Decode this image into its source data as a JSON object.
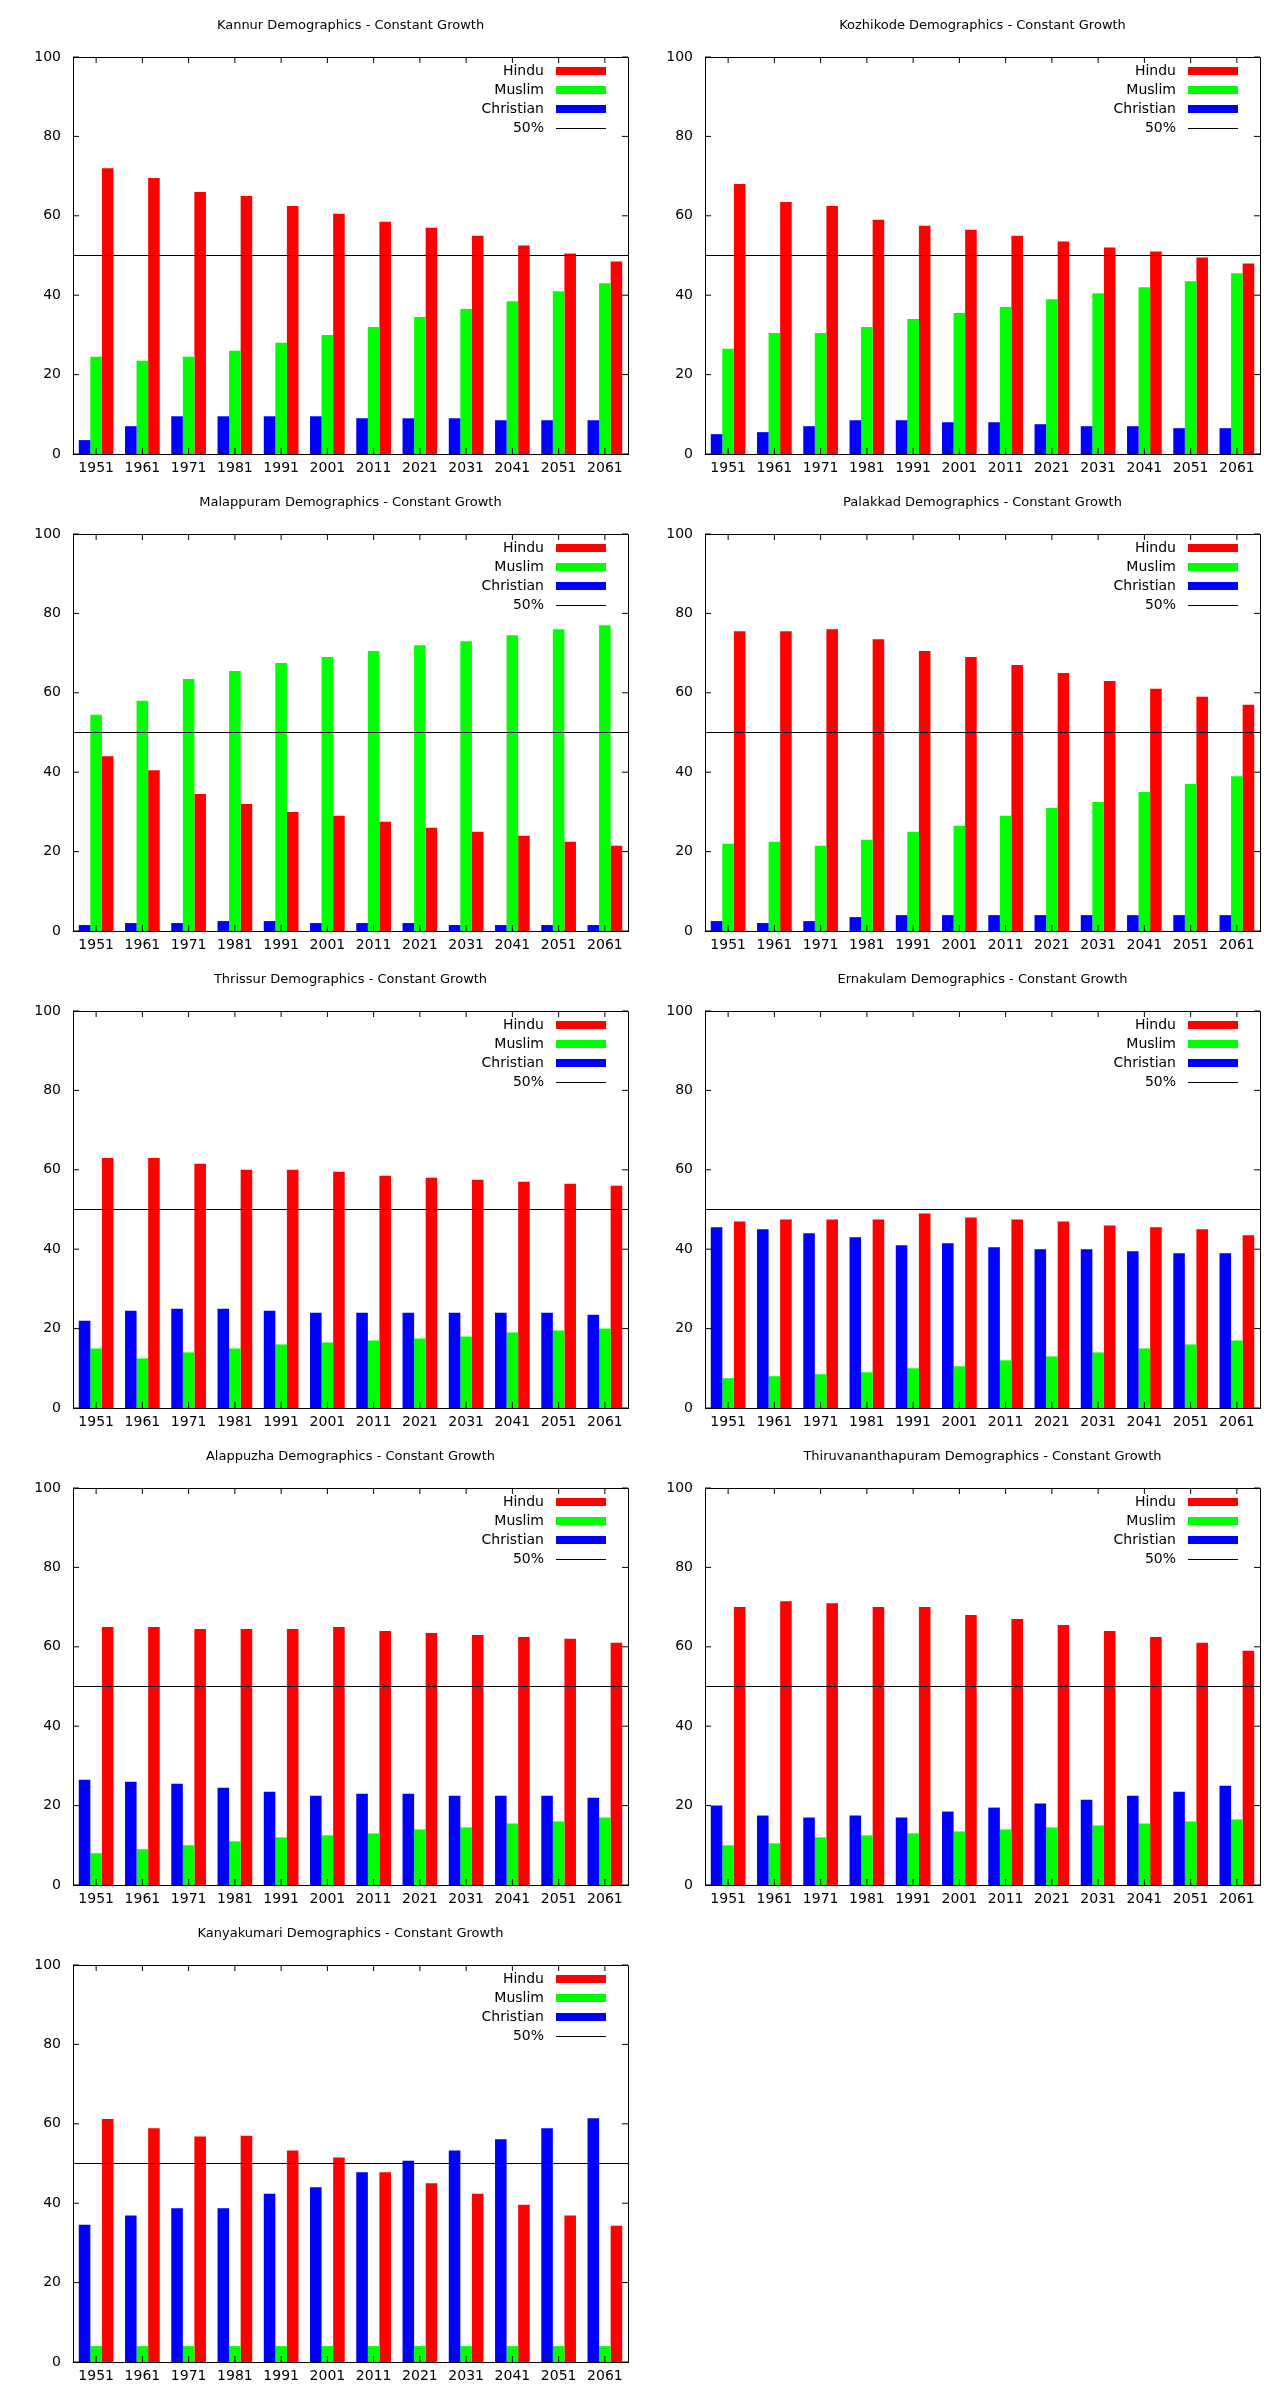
{
  "chart_data": [
    {
      "type": "bar",
      "title": "Kannur Demographics - Constant Growth",
      "categories": [
        "1951",
        "1961",
        "1971",
        "1981",
        "1991",
        "2001",
        "2011",
        "2021",
        "2031",
        "2041",
        "2051",
        "2061"
      ],
      "series": [
        {
          "name": "Hindu",
          "color": "#ff0000",
          "values": [
            72,
            69.5,
            66,
            65,
            62.5,
            60.5,
            58.5,
            57,
            55,
            52.5,
            50.5,
            48.5
          ]
        },
        {
          "name": "Muslim",
          "color": "#00ff00",
          "values": [
            24.5,
            23.5,
            24.5,
            26,
            28,
            30,
            32,
            34.5,
            36.5,
            38.5,
            41,
            43
          ]
        },
        {
          "name": "Christian",
          "color": "#0000ff",
          "values": [
            3.5,
            7,
            9.5,
            9.5,
            9.5,
            9.5,
            9,
            9,
            9,
            8.5,
            8.5,
            8.5
          ]
        }
      ],
      "ylim": [
        0,
        100
      ],
      "yticks": [
        0,
        20,
        40,
        60,
        80,
        100
      ],
      "ref_lines": [
        {
          "axis": "y",
          "value": 50,
          "label": "50%",
          "color": "#000000"
        }
      ],
      "legend": "top right",
      "grid": false
    },
    {
      "type": "bar",
      "title": "Kozhikode Demographics - Constant Growth",
      "categories": [
        "1951",
        "1961",
        "1971",
        "1981",
        "1991",
        "2001",
        "2011",
        "2021",
        "2031",
        "2041",
        "2051",
        "2061"
      ],
      "series": [
        {
          "name": "Hindu",
          "color": "#ff0000",
          "values": [
            68,
            63.5,
            62.5,
            59,
            57.5,
            56.5,
            55,
            53.5,
            52,
            51,
            49.5,
            48
          ]
        },
        {
          "name": "Muslim",
          "color": "#00ff00",
          "values": [
            26.5,
            30.5,
            30.5,
            32,
            34,
            35.5,
            37,
            39,
            40.5,
            42,
            43.5,
            45.5
          ]
        },
        {
          "name": "Christian",
          "color": "#0000ff",
          "values": [
            5,
            5.5,
            7,
            8.5,
            8.5,
            8,
            8,
            7.5,
            7,
            7,
            6.5,
            6.5
          ]
        }
      ],
      "ylim": [
        0,
        100
      ],
      "yticks": [
        0,
        20,
        40,
        60,
        80,
        100
      ],
      "ref_lines": [
        {
          "axis": "y",
          "value": 50,
          "label": "50%",
          "color": "#000000"
        }
      ],
      "legend": "top right",
      "grid": false
    },
    {
      "type": "bar",
      "title": "Malappuram Demographics - Constant Growth",
      "categories": [
        "1951",
        "1961",
        "1971",
        "1981",
        "1991",
        "2001",
        "2011",
        "2021",
        "2031",
        "2041",
        "2051",
        "2061"
      ],
      "series": [
        {
          "name": "Hindu",
          "color": "#ff0000",
          "values": [
            44,
            40.5,
            34.5,
            32,
            30,
            29,
            27.5,
            26,
            25,
            24,
            22.5,
            21.5
          ]
        },
        {
          "name": "Muslim",
          "color": "#00ff00",
          "values": [
            54.5,
            58,
            63.5,
            65.5,
            67.5,
            69,
            70.5,
            72,
            73,
            74.5,
            76,
            77
          ]
        },
        {
          "name": "Christian",
          "color": "#0000ff",
          "values": [
            1.5,
            2,
            2,
            2.5,
            2.5,
            2,
            2,
            2,
            1.5,
            1.5,
            1.5,
            1.5
          ]
        }
      ],
      "ylim": [
        0,
        100
      ],
      "yticks": [
        0,
        20,
        40,
        60,
        80,
        100
      ],
      "ref_lines": [
        {
          "axis": "y",
          "value": 50,
          "label": "50%",
          "color": "#000000"
        }
      ],
      "legend": "top right",
      "grid": false
    },
    {
      "type": "bar",
      "title": "Palakkad Demographics - Constant Growth",
      "categories": [
        "1951",
        "1961",
        "1971",
        "1981",
        "1991",
        "2001",
        "2011",
        "2021",
        "2031",
        "2041",
        "2051",
        "2061"
      ],
      "series": [
        {
          "name": "Hindu",
          "color": "#ff0000",
          "values": [
            75.5,
            75.5,
            76,
            73.5,
            70.5,
            69,
            67,
            65,
            63,
            61,
            59,
            57
          ]
        },
        {
          "name": "Muslim",
          "color": "#00ff00",
          "values": [
            22,
            22.5,
            21.5,
            23,
            25,
            26.5,
            29,
            31,
            32.5,
            35,
            37,
            39
          ]
        },
        {
          "name": "Christian",
          "color": "#0000ff",
          "values": [
            2.5,
            2,
            2.5,
            3.5,
            4,
            4,
            4,
            4,
            4,
            4,
            4,
            4
          ]
        }
      ],
      "ylim": [
        0,
        100
      ],
      "yticks": [
        0,
        20,
        40,
        60,
        80,
        100
      ],
      "ref_lines": [
        {
          "axis": "y",
          "value": 50,
          "label": "50%",
          "color": "#000000"
        }
      ],
      "legend": "top right",
      "grid": false
    },
    {
      "type": "bar",
      "title": "Thrissur Demographics - Constant Growth",
      "categories": [
        "1951",
        "1961",
        "1971",
        "1981",
        "1991",
        "2001",
        "2011",
        "2021",
        "2031",
        "2041",
        "2051",
        "2061"
      ],
      "series": [
        {
          "name": "Hindu",
          "color": "#ff0000",
          "values": [
            63,
            63,
            61.5,
            60,
            60,
            59.5,
            58.5,
            58,
            57.5,
            57,
            56.5,
            56
          ]
        },
        {
          "name": "Muslim",
          "color": "#00ff00",
          "values": [
            15,
            12.5,
            14,
            15,
            16,
            16.5,
            17,
            17.5,
            18,
            19,
            19.5,
            20
          ]
        },
        {
          "name": "Christian",
          "color": "#0000ff",
          "values": [
            22,
            24.5,
            25,
            25,
            24.5,
            24,
            24,
            24,
            24,
            24,
            24,
            23.5
          ]
        }
      ],
      "ylim": [
        0,
        100
      ],
      "yticks": [
        0,
        20,
        40,
        60,
        80,
        100
      ],
      "ref_lines": [
        {
          "axis": "y",
          "value": 50,
          "label": "50%",
          "color": "#000000"
        }
      ],
      "legend": "top right",
      "grid": false
    },
    {
      "type": "bar",
      "title": "Ernakulam Demographics - Constant Growth",
      "categories": [
        "1951",
        "1961",
        "1971",
        "1981",
        "1991",
        "2001",
        "2011",
        "2021",
        "2031",
        "2041",
        "2051",
        "2061"
      ],
      "series": [
        {
          "name": "Hindu",
          "color": "#ff0000",
          "values": [
            47,
            47.5,
            47.5,
            47.5,
            49,
            48,
            47.5,
            47,
            46,
            45.5,
            45,
            43.5
          ]
        },
        {
          "name": "Muslim",
          "color": "#00ff00",
          "values": [
            7.5,
            8,
            8.5,
            9,
            10,
            10.5,
            12,
            13,
            14,
            15,
            16,
            17
          ]
        },
        {
          "name": "Christian",
          "color": "#0000ff",
          "values": [
            45.5,
            45,
            44,
            43,
            41,
            41.5,
            40.5,
            40,
            40,
            39.5,
            39,
            39
          ]
        }
      ],
      "ylim": [
        0,
        100
      ],
      "yticks": [
        0,
        20,
        40,
        60,
        80,
        100
      ],
      "ref_lines": [
        {
          "axis": "y",
          "value": 50,
          "label": "50%",
          "color": "#000000"
        }
      ],
      "legend": "top right",
      "grid": false
    },
    {
      "type": "bar",
      "title": "Alappuzha Demographics - Constant Growth",
      "categories": [
        "1951",
        "1961",
        "1971",
        "1981",
        "1991",
        "2001",
        "2011",
        "2021",
        "2031",
        "2041",
        "2051",
        "2061"
      ],
      "series": [
        {
          "name": "Hindu",
          "color": "#ff0000",
          "values": [
            65,
            65,
            64.5,
            64.5,
            64.5,
            65,
            64,
            63.5,
            63,
            62.5,
            62,
            61
          ]
        },
        {
          "name": "Muslim",
          "color": "#00ff00",
          "values": [
            8,
            9,
            10,
            11,
            12,
            12.5,
            13,
            14,
            14.5,
            15.5,
            16,
            17
          ]
        },
        {
          "name": "Christian",
          "color": "#0000ff",
          "values": [
            26.5,
            26,
            25.5,
            24.5,
            23.5,
            22.5,
            23,
            23,
            22.5,
            22.5,
            22.5,
            22
          ]
        }
      ],
      "ylim": [
        0,
        100
      ],
      "yticks": [
        0,
        20,
        40,
        60,
        80,
        100
      ],
      "ref_lines": [
        {
          "axis": "y",
          "value": 50,
          "label": "50%",
          "color": "#000000"
        }
      ],
      "legend": "top right",
      "grid": false
    },
    {
      "type": "bar",
      "title": "Thiruvananthapuram Demographics - Constant Growth",
      "categories": [
        "1951",
        "1961",
        "1971",
        "1981",
        "1991",
        "2001",
        "2011",
        "2021",
        "2031",
        "2041",
        "2051",
        "2061"
      ],
      "series": [
        {
          "name": "Hindu",
          "color": "#ff0000",
          "values": [
            70,
            71.5,
            71,
            70,
            70,
            68,
            67,
            65.5,
            64,
            62.5,
            61,
            59
          ]
        },
        {
          "name": "Muslim",
          "color": "#00ff00",
          "values": [
            10,
            10.5,
            12,
            12.5,
            13,
            13.5,
            14,
            14.5,
            15,
            15.5,
            16,
            16.5
          ]
        },
        {
          "name": "Christian",
          "color": "#0000ff",
          "values": [
            20,
            17.5,
            17,
            17.5,
            17,
            18.5,
            19.5,
            20.5,
            21.5,
            22.5,
            23.5,
            25
          ]
        }
      ],
      "ylim": [
        0,
        100
      ],
      "yticks": [
        0,
        20,
        40,
        60,
        80,
        100
      ],
      "ref_lines": [
        {
          "axis": "y",
          "value": 50,
          "label": "50%",
          "color": "#000000"
        }
      ],
      "legend": "top right",
      "grid": false
    },
    {
      "type": "bar",
      "title": "Kanyakumari Demographics - Constant Growth",
      "categories": [
        "1951",
        "1961",
        "1971",
        "1981",
        "1991",
        "2001",
        "2011",
        "2021",
        "2031",
        "2041",
        "2051",
        "2061"
      ],
      "series": [
        {
          "name": "Hindu",
          "color": "#ff0000",
          "values": [
            61.2,
            58.9,
            56.8,
            57,
            53.3,
            51.5,
            47.8,
            45,
            42.4,
            39.6,
            36.9,
            34.3
          ]
        },
        {
          "name": "Muslim",
          "color": "#00ff00",
          "values": [
            4,
            4,
            4,
            4,
            4,
            4,
            4,
            4,
            4,
            4,
            4,
            4
          ]
        },
        {
          "name": "Christian",
          "color": "#0000ff",
          "values": [
            34.6,
            36.9,
            38.7,
            38.7,
            42.4,
            44,
            47.8,
            50.7,
            53.3,
            56.1,
            58.9,
            61.4
          ]
        }
      ],
      "ylim": [
        0,
        100
      ],
      "yticks": [
        0,
        20,
        40,
        60,
        80,
        100
      ],
      "ref_lines": [
        {
          "axis": "y",
          "value": 50,
          "label": "50%",
          "color": "#000000"
        }
      ],
      "legend": "top right",
      "grid": false
    }
  ]
}
